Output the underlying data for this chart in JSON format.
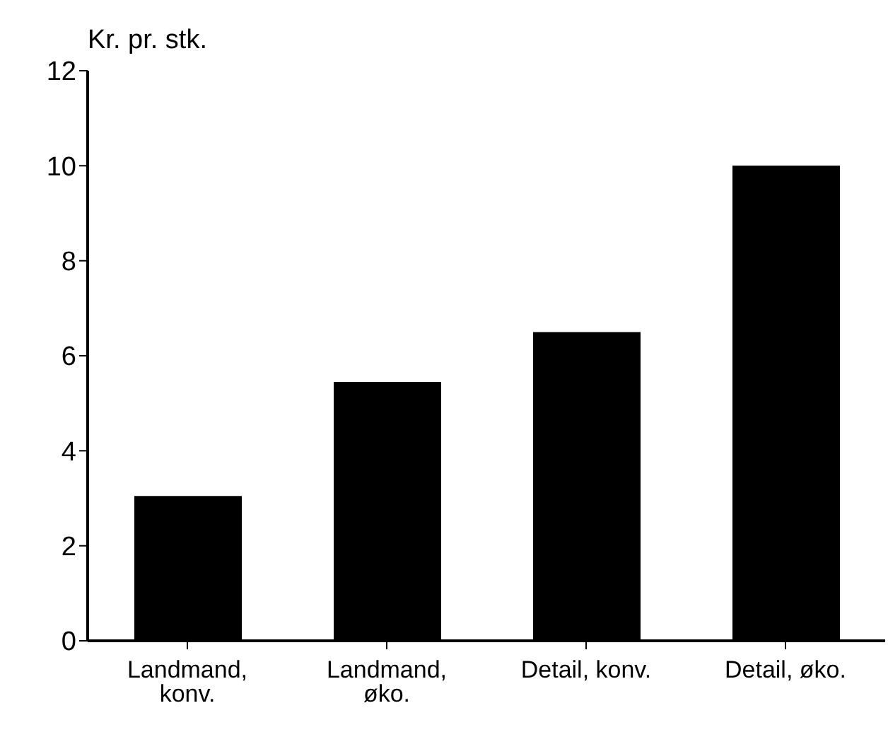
{
  "chart_data": {
    "type": "bar",
    "ylabel": "Kr. pr. stk.",
    "categories": [
      "Landmand, konv.",
      "Landmand, øko.",
      "Detail, konv.",
      "Detail, øko."
    ],
    "values": [
      3.05,
      5.45,
      6.5,
      10
    ],
    "color": "#000000",
    "ylim": [
      0,
      12
    ],
    "yticks": [
      0,
      2,
      4,
      6,
      8,
      10,
      12
    ],
    "grid": false,
    "legend": false
  }
}
